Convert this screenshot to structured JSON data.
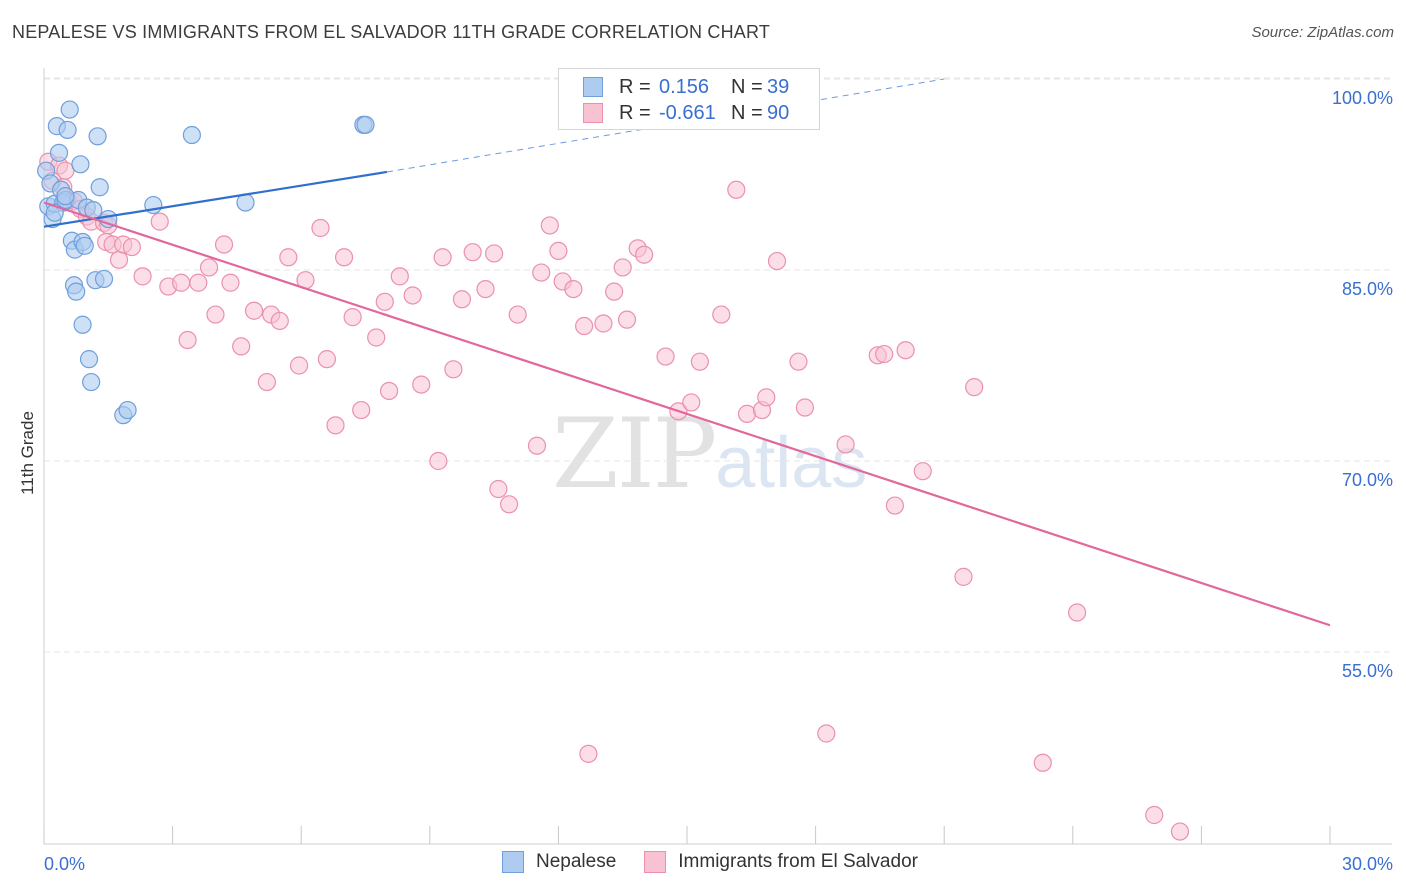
{
  "header": {
    "title": "NEPALESE VS IMMIGRANTS FROM EL SALVADOR 11TH GRADE CORRELATION CHART",
    "source": "Source: ZipAtlas.com"
  },
  "watermark": {
    "zip": "ZIP",
    "atlas": "atlas"
  },
  "legend": {
    "rows": [
      {
        "r_label": "R =",
        "r_value": "0.156",
        "n_label": "N =",
        "n_value": "39"
      },
      {
        "r_label": "R =",
        "r_value": "-0.661",
        "n_label": "N =",
        "n_value": "90"
      }
    ]
  },
  "bottom_legend": {
    "series1": "Nepalese",
    "series2": "Immigrants from El Salvador"
  },
  "colors": {
    "blue_fill": "#aecbf0",
    "blue_stroke": "#6f9fdc",
    "blue_line": "#2f6fcf",
    "pink_fill": "#f7c3d3",
    "pink_stroke": "#ec90ad",
    "pink_line": "#e2679a",
    "axis_text": "#3a6fd0",
    "grid": "#e6e6e6"
  },
  "chart_data": {
    "type": "scatter",
    "title": "NEPALESE VS IMMIGRANTS FROM EL SALVADOR 11TH GRADE CORRELATION CHART",
    "xlabel": "",
    "ylabel": "11th Grade",
    "xlim": [
      0,
      30
    ],
    "ylim": [
      40,
      102
    ],
    "x_tick_labels": [
      "0.0%",
      "30.0%"
    ],
    "y_ticks": [
      100,
      85,
      70,
      55
    ],
    "y_tick_labels": [
      "100.0%",
      "85.0%",
      "70.0%",
      "55.0%"
    ],
    "series": [
      {
        "name": "Nepalese",
        "points": [
          [
            0.05,
            92.8
          ],
          [
            0.1,
            90.0
          ],
          [
            0.15,
            91.8
          ],
          [
            0.2,
            89.0
          ],
          [
            0.25,
            90.2
          ],
          [
            0.3,
            96.3
          ],
          [
            0.35,
            94.2
          ],
          [
            0.4,
            91.3
          ],
          [
            0.45,
            90.3
          ],
          [
            0.5,
            90.5
          ],
          [
            0.55,
            96.0
          ],
          [
            0.6,
            97.6
          ],
          [
            0.65,
            87.3
          ],
          [
            0.7,
            83.8
          ],
          [
            0.72,
            86.6
          ],
          [
            0.75,
            83.3
          ],
          [
            0.8,
            90.5
          ],
          [
            0.85,
            93.3
          ],
          [
            0.9,
            87.2
          ],
          [
            0.9,
            80.7
          ],
          [
            0.95,
            86.9
          ],
          [
            1.0,
            89.9
          ],
          [
            1.05,
            78.0
          ],
          [
            1.1,
            76.2
          ],
          [
            1.15,
            89.7
          ],
          [
            1.2,
            84.2
          ],
          [
            1.25,
            95.5
          ],
          [
            1.3,
            91.5
          ],
          [
            1.4,
            84.3
          ],
          [
            1.5,
            89.0
          ],
          [
            1.85,
            73.6
          ],
          [
            1.95,
            74.0
          ],
          [
            2.55,
            90.1
          ],
          [
            3.45,
            95.6
          ],
          [
            4.7,
            90.3
          ],
          [
            7.45,
            96.4
          ],
          [
            7.5,
            96.4
          ],
          [
            0.25,
            89.5
          ],
          [
            0.5,
            90.8
          ]
        ]
      },
      {
        "name": "Immigrants from El Salvador",
        "points": [
          [
            0.1,
            93.5
          ],
          [
            0.2,
            92.0
          ],
          [
            0.35,
            93.2
          ],
          [
            0.45,
            91.5
          ],
          [
            0.5,
            92.8
          ],
          [
            0.55,
            90.5
          ],
          [
            0.7,
            90.4
          ],
          [
            0.85,
            89.8
          ],
          [
            1.0,
            89.2
          ],
          [
            1.1,
            88.8
          ],
          [
            1.4,
            88.7
          ],
          [
            1.5,
            88.5
          ],
          [
            1.45,
            87.2
          ],
          [
            1.6,
            87.0
          ],
          [
            1.75,
            85.8
          ],
          [
            1.85,
            87.0
          ],
          [
            2.05,
            86.8
          ],
          [
            2.3,
            84.5
          ],
          [
            2.7,
            88.8
          ],
          [
            2.9,
            83.7
          ],
          [
            3.2,
            84.0
          ],
          [
            3.35,
            79.5
          ],
          [
            3.6,
            84.0
          ],
          [
            3.85,
            85.2
          ],
          [
            4.0,
            81.5
          ],
          [
            4.2,
            87.0
          ],
          [
            4.35,
            84.0
          ],
          [
            4.6,
            79.0
          ],
          [
            4.9,
            81.8
          ],
          [
            5.2,
            76.2
          ],
          [
            5.3,
            81.5
          ],
          [
            5.5,
            81.0
          ],
          [
            5.7,
            86.0
          ],
          [
            5.95,
            77.5
          ],
          [
            6.1,
            84.2
          ],
          [
            6.45,
            88.3
          ],
          [
            6.6,
            78.0
          ],
          [
            6.8,
            72.8
          ],
          [
            7.0,
            86.0
          ],
          [
            7.2,
            81.3
          ],
          [
            7.4,
            74.0
          ],
          [
            7.75,
            79.7
          ],
          [
            7.95,
            82.5
          ],
          [
            8.05,
            75.5
          ],
          [
            8.3,
            84.5
          ],
          [
            8.6,
            83.0
          ],
          [
            8.8,
            76.0
          ],
          [
            9.2,
            70.0
          ],
          [
            9.3,
            86.0
          ],
          [
            9.55,
            77.2
          ],
          [
            9.75,
            82.7
          ],
          [
            10.0,
            86.4
          ],
          [
            10.3,
            83.5
          ],
          [
            10.5,
            86.3
          ],
          [
            10.6,
            67.8
          ],
          [
            10.85,
            66.6
          ],
          [
            11.05,
            81.5
          ],
          [
            11.5,
            71.2
          ],
          [
            11.6,
            84.8
          ],
          [
            11.8,
            88.5
          ],
          [
            12.0,
            86.5
          ],
          [
            12.1,
            84.1
          ],
          [
            12.35,
            83.5
          ],
          [
            12.6,
            80.6
          ],
          [
            12.7,
            47.0
          ],
          [
            13.05,
            80.8
          ],
          [
            13.3,
            83.3
          ],
          [
            13.5,
            85.2
          ],
          [
            13.6,
            81.1
          ],
          [
            13.85,
            86.7
          ],
          [
            14.0,
            86.2
          ],
          [
            14.5,
            78.2
          ],
          [
            14.8,
            73.9
          ],
          [
            15.1,
            74.6
          ],
          [
            15.3,
            77.8
          ],
          [
            15.8,
            81.5
          ],
          [
            16.15,
            91.3
          ],
          [
            16.4,
            73.7
          ],
          [
            16.75,
            74.0
          ],
          [
            16.85,
            75.0
          ],
          [
            17.1,
            85.7
          ],
          [
            17.6,
            77.8
          ],
          [
            17.75,
            74.2
          ],
          [
            18.25,
            48.6
          ],
          [
            18.7,
            71.3
          ],
          [
            19.45,
            78.3
          ],
          [
            19.6,
            78.4
          ],
          [
            19.85,
            66.5
          ],
          [
            20.1,
            78.7
          ],
          [
            21.45,
            60.9
          ]
        ]
      }
    ],
    "extra_points_series2": [
      [
        20.5,
        69.2
      ],
      [
        21.7,
        75.8
      ],
      [
        23.3,
        46.3
      ],
      [
        24.1,
        58.1
      ],
      [
        25.9,
        42.2
      ],
      [
        26.5,
        40.9
      ]
    ],
    "trend_lines": [
      {
        "series": "Nepalese",
        "from": [
          0,
          88.4
        ],
        "to": [
          8.0,
          92.7
        ],
        "dashed_to": [
          21.0,
          100.0
        ]
      },
      {
        "series": "Immigrants from El Salvador",
        "from": [
          0,
          90.3
        ],
        "to": [
          30,
          57.1
        ]
      }
    ]
  }
}
